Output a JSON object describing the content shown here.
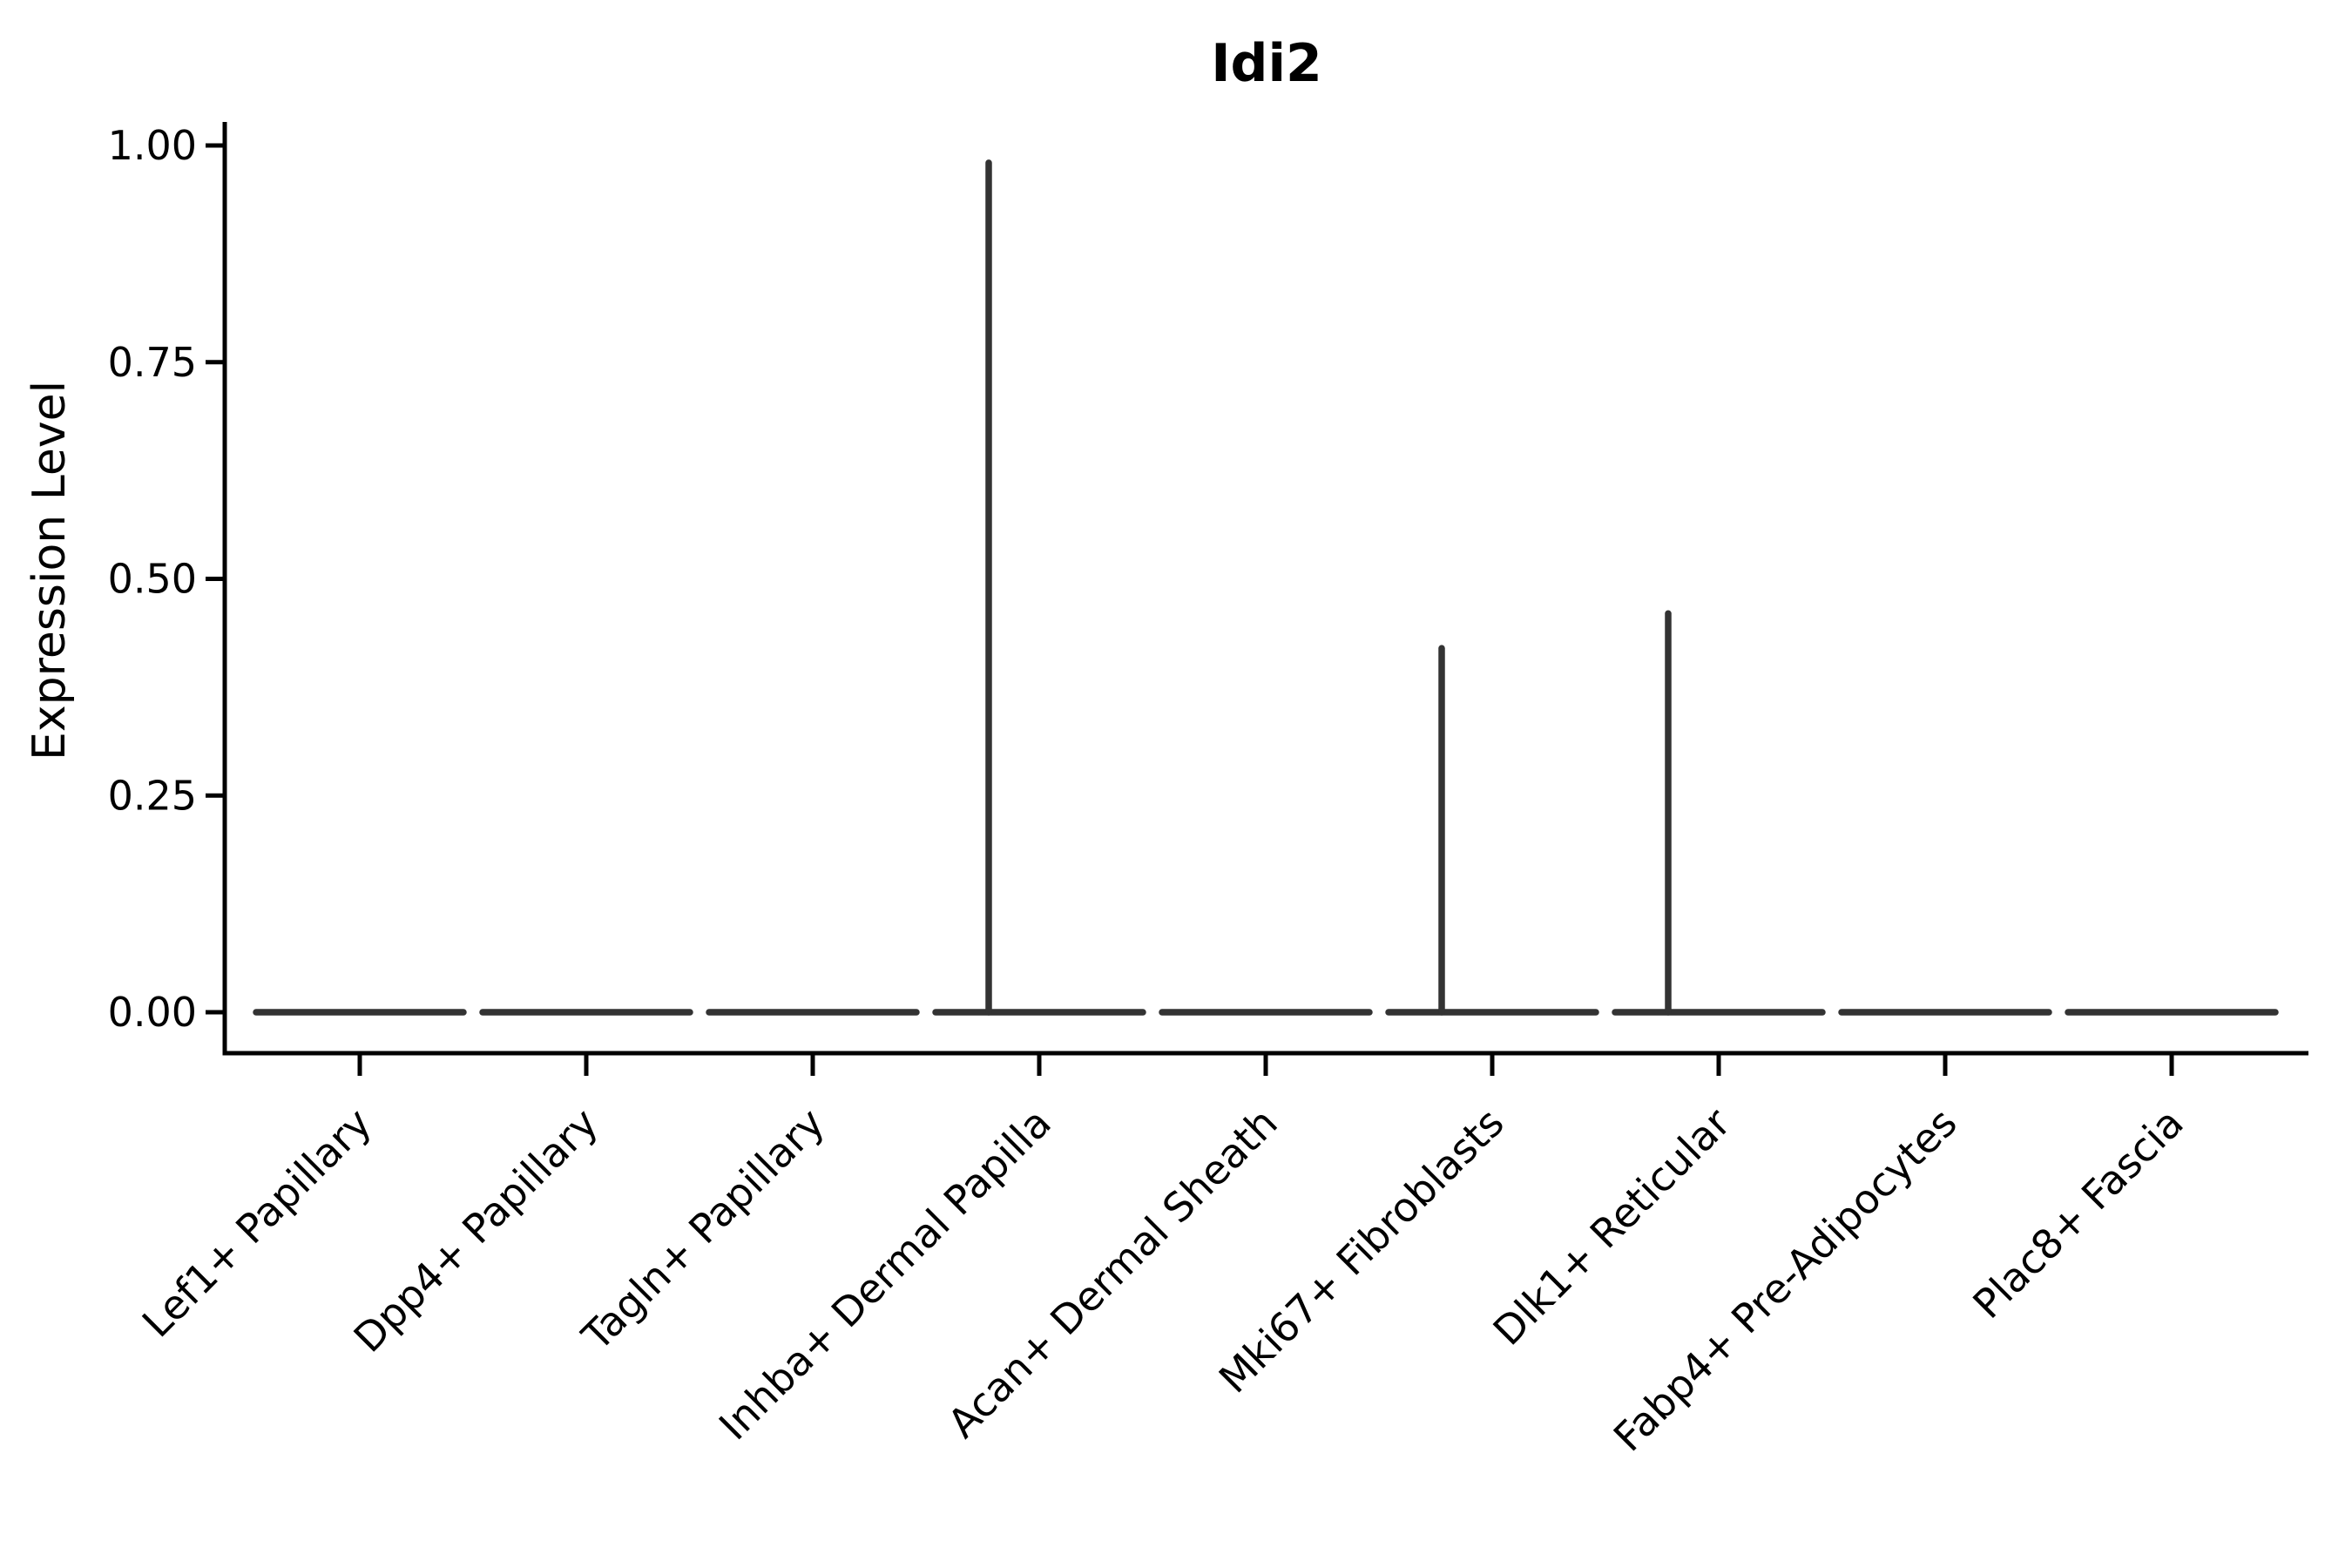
{
  "figure": {
    "background": "#ffffff"
  },
  "chart_data": {
    "type": "violin",
    "title": "Idi2",
    "ylabel": "Expression Level",
    "xlabel": "",
    "categories": [
      "Lef1+ Papillary",
      "Dpp4+ Papillary",
      "Tagln+ Papillary",
      "Inhba+ Dermal Papilla",
      "Acan+ Dermal Sheath",
      "Mki67+ Fibroblasts",
      "Dlk1+ Reticular",
      "Fabp4+ Pre-Adipocytes",
      "Plac8+ Fascia"
    ],
    "series": [
      {
        "name": "Idi2",
        "violin_baseline": 0.0,
        "violin_max_expression": [
          0,
          0,
          0,
          0.98,
          0,
          0.42,
          0.46,
          0,
          0
        ]
      }
    ],
    "ylim": [
      0.0,
      1.0
    ],
    "yticks": [
      0.0,
      0.25,
      0.5,
      0.75,
      1.0
    ],
    "ytick_labels": [
      "0.00",
      "0.25",
      "0.50",
      "0.75",
      "1.00"
    ],
    "x_tick_rotation_deg": 45,
    "grid": false,
    "legend_position": "none",
    "colors": {
      "violin_outline": "#333333",
      "axis": "#000000",
      "text": "#000000"
    }
  }
}
